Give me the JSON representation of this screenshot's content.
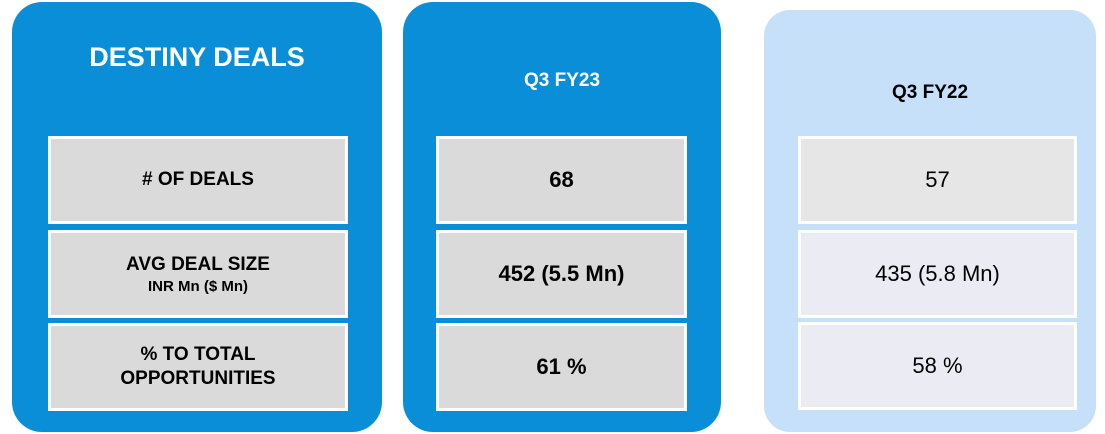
{
  "columns": [
    {
      "header": "DESTINY DEALS",
      "cells": [
        {
          "text": "# OF DEALS"
        },
        {
          "text": "AVG DEAL SIZE",
          "subtext": "INR Mn ($ Mn)"
        },
        {
          "text": "% TO TOTAL OPPORTUNITIES"
        }
      ]
    },
    {
      "header": "Q3 FY23",
      "cells": [
        {
          "text": "68"
        },
        {
          "text": "452 (5.5 Mn)"
        },
        {
          "text": "61 %"
        }
      ]
    },
    {
      "header": "Q3 FY22",
      "cells": [
        {
          "text": "57"
        },
        {
          "text": "435 (5.8 Mn)"
        },
        {
          "text": "58 %"
        }
      ]
    }
  ]
}
